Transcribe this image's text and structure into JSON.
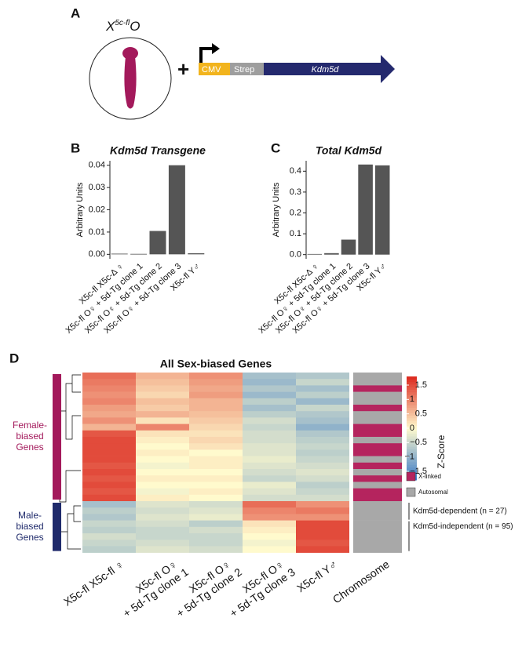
{
  "panel_labels": [
    "A",
    "B",
    "C",
    "D"
  ],
  "diagram": {
    "genotype": {
      "base": "X",
      "sup": "5c-fl",
      "tail": "O"
    },
    "plus": "+",
    "construct": [
      "CMV",
      "Strep",
      "Kdm5d"
    ]
  },
  "chart_data": [
    {
      "type": "bar",
      "title": "Kdm5d Transgene",
      "ylabel": "Arbitrary Units",
      "color": "#555555",
      "categories": [
        "X5c-fl X5c-Δ ♀",
        "X5c-fl O♀ + 5d-Tg clone 1",
        "X5c-fl O♀ + 5d-Tg clone 2",
        "X5c-fl O♀ + 5d-Tg clone 3",
        "X5c-fl Y♂"
      ],
      "values": [
        0.0003,
        0.0002,
        0.0105,
        0.04,
        0.0005
      ],
      "ylim": [
        -0.002,
        0.042
      ],
      "yticks": [
        {
          "value": 0,
          "label": "0.00"
        },
        {
          "value": 0.01,
          "label": "0.01"
        },
        {
          "value": 0.02,
          "label": "0.02"
        },
        {
          "value": 0.03,
          "label": "0.03"
        },
        {
          "value": 0.04,
          "label": "0.04"
        }
      ]
    },
    {
      "type": "bar",
      "title": "Total Kdm5d",
      "ylabel": "Arbitrary Units",
      "color": "#555555",
      "categories": [
        "X5c-fl X5c-Δ ♀",
        "X5c-fl O♀ + 5d-Tg clone 1",
        "X5c-fl O♀ + 5d-Tg clone 2",
        "X5c-fl O♀ + 5d-Tg clone 3",
        "X5c-fl Y♂"
      ],
      "values": [
        0.003,
        0.007,
        0.072,
        0.432,
        0.428
      ],
      "ylim": [
        -0.02,
        0.45
      ],
      "yticks": [
        {
          "value": 0,
          "label": "0.0"
        },
        {
          "value": 0.1,
          "label": "0.1"
        },
        {
          "value": 0.2,
          "label": "0.2"
        },
        {
          "value": 0.3,
          "label": "0.3"
        },
        {
          "value": 0.4,
          "label": "0.4"
        }
      ]
    },
    {
      "type": "heatmap",
      "title": "All Sex-biased Genes",
      "columns": [
        [
          "X5c-fl X5c-fl ♀"
        ],
        [
          "X5c-fl O♀",
          "+ 5d-Tg clone 1"
        ],
        [
          "X5c-fl O♀",
          "+ 5d-Tg clone 2"
        ],
        [
          "X5c-fl O♀",
          "+ 5d-Tg clone 3"
        ],
        [
          "X5c-fl Y♂"
        ]
      ],
      "track_label": "Chromosome",
      "colorbar_label": "Z-Score",
      "zlim": [
        -1.8,
        1.8
      ],
      "zticks": [
        1.5,
        1,
        0.5,
        0,
        {
          "value": -0.5,
          "label": "−0.5"
        },
        {
          "value": -1,
          "label": "−1"
        },
        {
          "value": -1.5,
          "label": "−1.5"
        }
      ],
      "legend": [
        {
          "name": "X-linked",
          "color": "#b5245e"
        },
        {
          "name": "Autosomal",
          "color": "#a8a8a8"
        }
      ],
      "groups": [
        {
          "name": [
            "Female-",
            "biased",
            "Genes"
          ],
          "color": "#a3195b",
          "rows": [
            [
              1.2,
              0.6,
              0.9,
              -0.8,
              -0.7
            ],
            [
              1.1,
              0.5,
              0.8,
              -0.9,
              -0.5
            ],
            [
              1.0,
              0.4,
              0.7,
              -0.7,
              -0.8
            ],
            [
              0.9,
              0.3,
              0.8,
              -0.9,
              -0.6
            ],
            [
              1.0,
              0.5,
              0.6,
              -0.6,
              -0.9
            ],
            [
              0.8,
              0.4,
              0.6,
              -0.8,
              -0.5
            ],
            [
              0.7,
              0.6,
              0.5,
              -0.6,
              -0.7
            ],
            [
              0.9,
              0.2,
              0.4,
              -0.4,
              -0.8
            ],
            [
              0.6,
              1.0,
              0.3,
              -0.5,
              -1.0
            ],
            [
              1.4,
              0.2,
              0.2,
              -0.4,
              -0.7
            ],
            [
              1.5,
              0.1,
              0.3,
              -0.4,
              -0.6
            ],
            [
              1.5,
              0.0,
              0.2,
              -0.3,
              -0.5
            ],
            [
              1.5,
              0.1,
              0.0,
              -0.3,
              -0.6
            ],
            [
              1.5,
              0.0,
              0.1,
              -0.2,
              -0.5
            ],
            [
              1.4,
              -0.1,
              0.1,
              -0.3,
              -0.4
            ],
            [
              1.5,
              0.0,
              0.0,
              -0.4,
              -0.3
            ],
            [
              1.4,
              0.1,
              0.1,
              -0.5,
              -0.4
            ],
            [
              1.5,
              0.0,
              0.0,
              -0.2,
              -0.6
            ],
            [
              1.4,
              -0.1,
              0.1,
              -0.3,
              -0.5
            ],
            [
              1.5,
              0.1,
              0.0,
              -0.4,
              -0.4
            ]
          ],
          "chromosome": [
            "Autosomal",
            "Autosomal",
            "X-linked",
            "Autosomal",
            "Autosomal",
            "X-linked",
            "Autosomal",
            "Autosomal",
            "X-linked",
            "X-linked",
            "Autosomal",
            "X-linked",
            "X-linked",
            "Autosomal",
            "X-linked",
            "Autosomal",
            "X-linked",
            "Autosomal",
            "X-linked",
            "X-linked"
          ]
        },
        {
          "name": [
            "Male-",
            "biased",
            "Genes"
          ],
          "color": "#1f2a6b",
          "rows": [
            [
              -0.8,
              -0.3,
              -0.4,
              1.2,
              0.9
            ],
            [
              -0.6,
              -0.4,
              -0.3,
              1.0,
              1.1
            ],
            [
              -0.7,
              -0.3,
              -0.2,
              0.9,
              0.9
            ],
            [
              -0.5,
              -0.4,
              -0.6,
              0.2,
              1.5
            ],
            [
              -0.6,
              -0.5,
              -0.4,
              0.1,
              1.5
            ],
            [
              -0.4,
              -0.5,
              -0.5,
              0.0,
              1.5
            ],
            [
              -0.5,
              -0.4,
              -0.5,
              -0.1,
              1.4
            ],
            [
              -0.6,
              -0.3,
              -0.4,
              0.0,
              1.5
            ]
          ],
          "chromosome": [
            "Autosomal",
            "Autosomal",
            "Autosomal",
            "Autosomal",
            "Autosomal",
            "Autosomal",
            "Autosomal",
            "Autosomal"
          ]
        }
      ],
      "annotations": [
        "Kdm5d-dependent (n = 27)",
        "Kdm5d-independent (n = 95)"
      ]
    }
  ]
}
